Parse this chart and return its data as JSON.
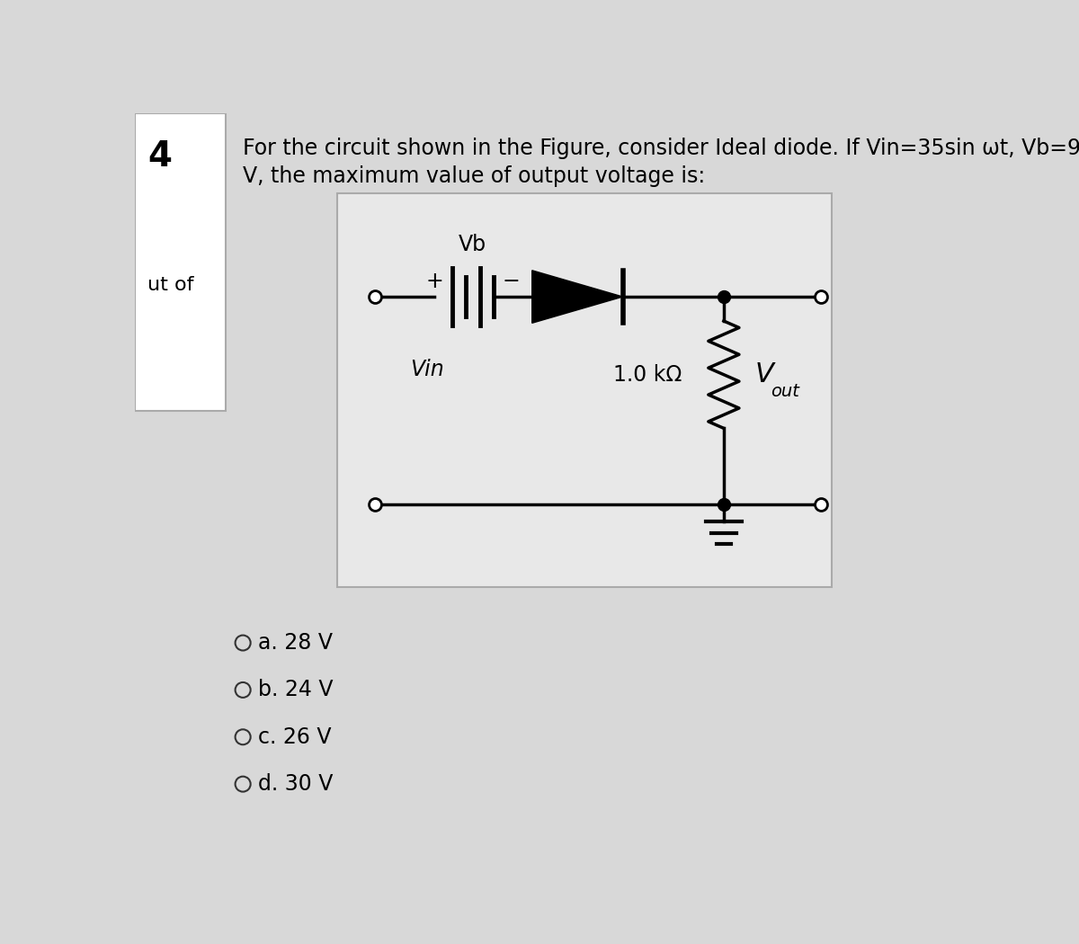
{
  "question_number": "4",
  "question_line1": "For the circuit shown in the Figure, consider Ideal diode. If Vin=35sin ωt, Vb=9",
  "question_line2": "V, the maximum value of output voltage is:",
  "side_text": "ut of",
  "bg_color": "#d8d8d8",
  "left_panel_color": "#c0c0c0",
  "left_panel_border": "#999999",
  "circuit_bg": "#e8e8e8",
  "circuit_border": "#bbbbbb",
  "options": [
    {
      "label": "a.",
      "value": "28 V"
    },
    {
      "label": "b.",
      "value": "24 V"
    },
    {
      "label": "c.",
      "value": "26 V"
    },
    {
      "label": "d.",
      "value": "30 V"
    }
  ],
  "vb_label": "Vb",
  "vin_label": "Vin",
  "resistor_label": "1.0 kΩ",
  "vout_V": "V",
  "vout_sub": "out",
  "plus_label": "+",
  "minus_label": "−"
}
